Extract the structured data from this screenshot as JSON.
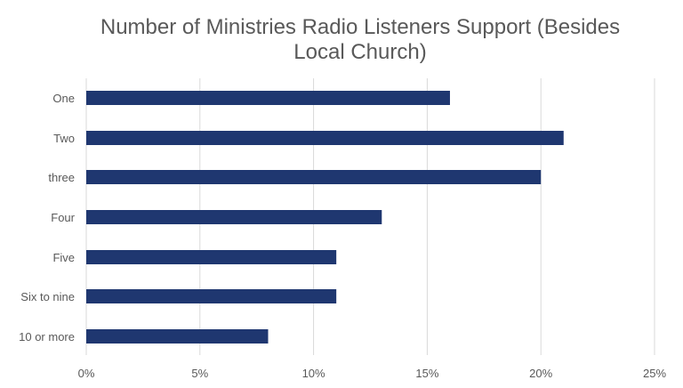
{
  "chart_data": {
    "type": "bar",
    "orientation": "horizontal",
    "title": "Number of Ministries Radio Listeners Support (Besides Local Church)",
    "title_lines": [
      "Number of Ministries Radio Listeners Support (Besides",
      "Local Church)"
    ],
    "categories": [
      "One",
      "Two",
      "three",
      "Four",
      "Five",
      "Six to nine",
      "10 or more"
    ],
    "values": [
      16,
      21,
      20,
      13,
      11,
      11,
      8
    ],
    "value_unit": "%",
    "xlim": [
      0,
      25
    ],
    "x_ticks": [
      "0%",
      "5%",
      "10%",
      "15%",
      "20%",
      "25%"
    ],
    "grid": true,
    "legend": "none",
    "colors": {
      "bar": "#1f3770",
      "grid": "#d9d9d9",
      "text": "#595959"
    }
  }
}
